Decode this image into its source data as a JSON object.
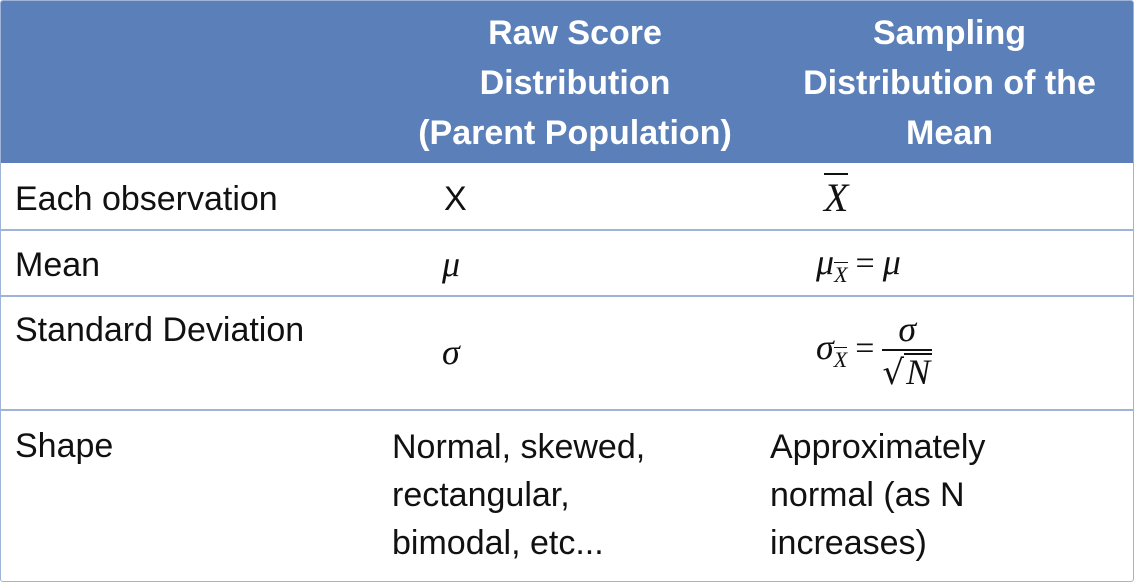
{
  "header": {
    "col1": "",
    "col2": [
      "Raw Score",
      "Distribution",
      "(Parent Population)"
    ],
    "col3": [
      "Sampling",
      "Distribution of the",
      "Mean"
    ]
  },
  "rows": {
    "observation": {
      "label": "Each observation",
      "raw": "X",
      "sampling": "X"
    },
    "mean": {
      "label": "Mean",
      "raw": "μ",
      "sampling_symbol": "μ",
      "sampling_sub": "X",
      "sampling_eq": "=",
      "sampling_rhs": "μ"
    },
    "sd": {
      "label": "Standard Deviation",
      "raw": "σ",
      "sampling_symbol": "σ",
      "sampling_sub": "X",
      "sampling_eq": "=",
      "sampling_num": "σ",
      "sampling_den": "N"
    },
    "shape": {
      "label": "Shape",
      "raw": "Normal, skewed,\nrectangular,\nbimodal, etc...",
      "sampling": "Approximately\nnormal (as N\nincreases)"
    }
  },
  "colors": {
    "header_bg": "#5b7fb8",
    "header_text": "#ffffff",
    "grid": "#9db3d8"
  }
}
